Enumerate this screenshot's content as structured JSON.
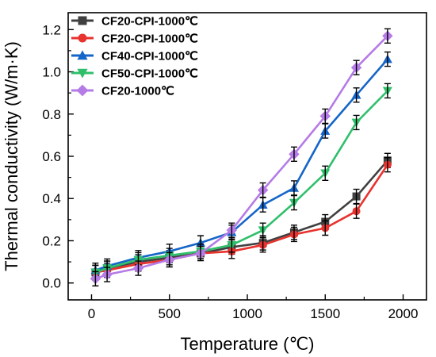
{
  "chart_data": {
    "type": "line",
    "xlabel": "Temperature (℃)",
    "ylabel": "Thermal conductivity (W/m·K)",
    "xlim": [
      -150,
      2150
    ],
    "ylim": [
      -0.08,
      1.28
    ],
    "x_ticks": [
      0,
      500,
      1000,
      1500,
      2000
    ],
    "y_ticks": [
      0.0,
      0.2,
      0.4,
      0.6,
      0.8,
      1.0,
      1.2
    ],
    "x_tick_labels": [
      "0",
      "500",
      "1000",
      "1500",
      "2000"
    ],
    "y_tick_labels": [
      "0.0",
      "0.2",
      "0.4",
      "0.6",
      "0.8",
      "1.0",
      "1.2"
    ],
    "grid": false,
    "legend_position": "top-left",
    "error_bars": true,
    "x": [
      25,
      100,
      300,
      500,
      700,
      900,
      1100,
      1300,
      1500,
      1700,
      1900
    ],
    "series": [
      {
        "name": "CF20-CPI-1000℃",
        "color": "#404040",
        "marker": "square",
        "values": [
          0.05,
          0.07,
          0.1,
          0.12,
          0.14,
          0.17,
          0.19,
          0.24,
          0.29,
          0.41,
          0.58
        ]
      },
      {
        "name": "CF20-CPI-1000℃",
        "color": "#e8322e",
        "marker": "circle",
        "values": [
          0.05,
          0.06,
          0.09,
          0.11,
          0.14,
          0.15,
          0.18,
          0.23,
          0.26,
          0.34,
          0.56
        ]
      },
      {
        "name": "CF40-CPI-1000℃",
        "color": "#1565c8",
        "marker": "triangle-up",
        "values": [
          0.06,
          0.08,
          0.12,
          0.15,
          0.19,
          0.24,
          0.37,
          0.45,
          0.72,
          0.89,
          1.06
        ]
      },
      {
        "name": "CF50-CPI-1000℃",
        "color": "#2fbf6b",
        "marker": "triangle-down",
        "values": [
          0.05,
          0.07,
          0.11,
          0.13,
          0.15,
          0.18,
          0.25,
          0.38,
          0.52,
          0.76,
          0.91
        ]
      },
      {
        "name": "CF20-1000℃",
        "color": "#b57be6",
        "marker": "diamond",
        "values": [
          0.02,
          0.04,
          0.07,
          0.11,
          0.14,
          0.25,
          0.44,
          0.61,
          0.79,
          1.02,
          1.17
        ]
      }
    ]
  }
}
